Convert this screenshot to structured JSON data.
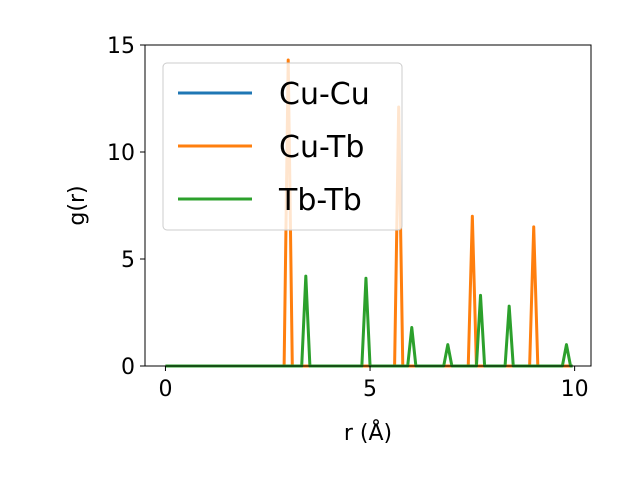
{
  "chart_data": {
    "type": "line",
    "title": "",
    "xlabel": "r (Å)",
    "ylabel": "g(r)",
    "xlim": [
      -0.5,
      10.4
    ],
    "ylim": [
      0,
      15
    ],
    "xticks": [
      0,
      5,
      10
    ],
    "xtick_labels": [
      "0",
      "5",
      "10"
    ],
    "yticks": [
      0,
      5,
      10,
      15
    ],
    "ytick_labels": [
      "0",
      "5",
      "10",
      "15"
    ],
    "grid": false,
    "legend_position": "upper-left",
    "series": [
      {
        "name": "Cu-Cu",
        "color": "#1f77b4",
        "x": [
          0,
          9.95
        ],
        "y": [
          0,
          0
        ]
      },
      {
        "name": "Cu-Tb",
        "color": "#ff7f0e",
        "x": [
          0,
          2.9,
          3.0,
          3.1,
          5.6,
          5.7,
          5.8,
          7.4,
          7.5,
          7.6,
          8.9,
          9.0,
          9.1,
          9.95
        ],
        "y": [
          0,
          0,
          14.3,
          0,
          0,
          12.1,
          0,
          0,
          7.0,
          0,
          0,
          6.5,
          0,
          0
        ]
      },
      {
        "name": "Tb-Tb",
        "color": "#2ca02c",
        "x": [
          0,
          3.33,
          3.43,
          3.53,
          4.8,
          4.9,
          5.0,
          5.92,
          6.02,
          6.12,
          6.8,
          6.9,
          7.0,
          7.6,
          7.7,
          7.8,
          8.3,
          8.4,
          8.5,
          9.7,
          9.8,
          9.9,
          9.95
        ],
        "y": [
          0,
          0,
          4.2,
          0,
          0,
          4.1,
          0,
          0,
          1.8,
          0,
          0,
          1.0,
          0,
          0,
          3.3,
          0,
          0,
          2.8,
          0,
          0,
          1.0,
          0,
          0
        ]
      }
    ]
  }
}
